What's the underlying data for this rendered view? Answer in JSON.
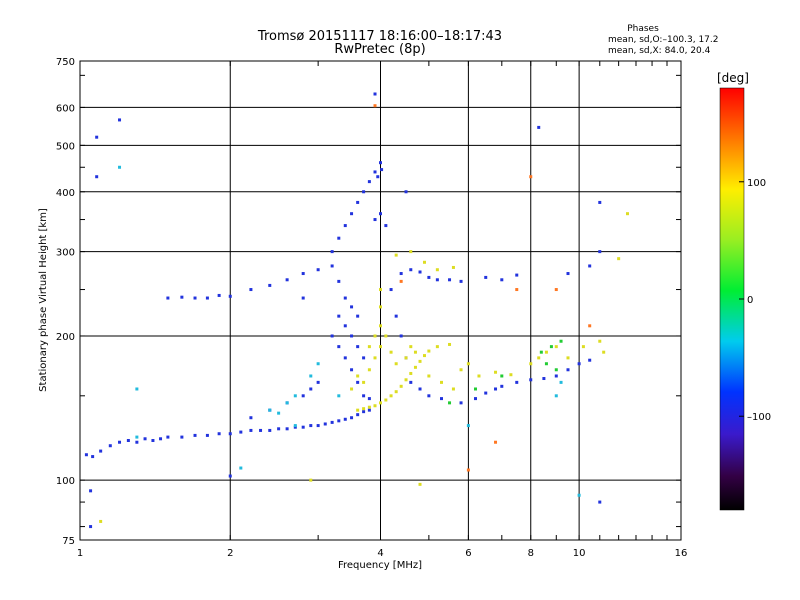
{
  "chart_data": {
    "type": "scatter",
    "title": "Tromsø 20151117 18:16:00–18:17:43",
    "subtitle": "RwPretec (8p)",
    "xlabel": "Frequency [MHz]",
    "ylabel": "Stationary phase Virtual Height [km]",
    "x_scale": "log",
    "y_scale": "log",
    "xlim": [
      1,
      16
    ],
    "ylim": [
      75,
      750
    ],
    "x_ticks": [
      1,
      2,
      4,
      6,
      8,
      10,
      16
    ],
    "x_tick_labels": [
      "1",
      "2",
      "4",
      "6",
      "8",
      "10",
      "16"
    ],
    "y_ticks": [
      75,
      100,
      200,
      300,
      400,
      500,
      600,
      750
    ],
    "y_tick_labels": [
      "75",
      "100",
      "200",
      "300",
      "400",
      "500",
      "600",
      "750"
    ],
    "grid": true,
    "phase_stats": {
      "title": "Phases",
      "line_o": "mean, sd,O:–100.3, 17.2",
      "line_x": "mean, sd,X:  84.0, 20.4"
    },
    "colorbar": {
      "label": "[deg]",
      "range": [
        -180,
        180
      ],
      "ticks": [
        100,
        0,
        -100
      ],
      "tick_labels": [
        "100",
        "0",
        "–100"
      ],
      "colormap": "rainbow"
    },
    "series": [
      {
        "description": "O-mode echoes (phase around -100 deg)",
        "phase": -100,
        "color": "#2233dd",
        "points": [
          [
            1.03,
            113
          ],
          [
            1.06,
            112
          ],
          [
            1.1,
            115
          ],
          [
            1.15,
            118
          ],
          [
            1.2,
            120
          ],
          [
            1.25,
            121
          ],
          [
            1.3,
            120
          ],
          [
            1.35,
            122
          ],
          [
            1.4,
            121
          ],
          [
            1.45,
            122
          ],
          [
            1.5,
            123
          ],
          [
            1.6,
            123
          ],
          [
            1.7,
            124
          ],
          [
            1.8,
            124
          ],
          [
            1.9,
            125
          ],
          [
            2.0,
            125
          ],
          [
            2.1,
            126
          ],
          [
            2.2,
            127
          ],
          [
            2.3,
            127
          ],
          [
            2.4,
            127
          ],
          [
            2.5,
            128
          ],
          [
            2.6,
            128
          ],
          [
            2.7,
            129
          ],
          [
            2.8,
            129
          ],
          [
            2.9,
            130
          ],
          [
            3.0,
            130
          ],
          [
            3.1,
            131
          ],
          [
            3.2,
            132
          ],
          [
            3.3,
            133
          ],
          [
            3.4,
            134
          ],
          [
            3.5,
            135
          ],
          [
            3.6,
            137
          ],
          [
            3.7,
            139
          ],
          [
            3.8,
            140
          ],
          [
            1.5,
            240
          ],
          [
            1.6,
            241
          ],
          [
            1.7,
            240
          ],
          [
            1.8,
            240
          ],
          [
            1.9,
            243
          ],
          [
            2.0,
            242
          ],
          [
            2.2,
            250
          ],
          [
            2.4,
            255
          ],
          [
            2.6,
            262
          ],
          [
            2.8,
            270
          ],
          [
            3.0,
            275
          ],
          [
            3.2,
            280
          ],
          [
            3.3,
            260
          ],
          [
            3.4,
            240
          ],
          [
            3.5,
            230
          ],
          [
            3.6,
            220
          ],
          [
            3.2,
            200
          ],
          [
            3.3,
            190
          ],
          [
            3.4,
            180
          ],
          [
            3.5,
            170
          ],
          [
            3.6,
            160
          ],
          [
            3.7,
            150
          ],
          [
            3.8,
            148
          ],
          [
            3.3,
            220
          ],
          [
            3.4,
            210
          ],
          [
            3.5,
            200
          ],
          [
            3.6,
            190
          ],
          [
            3.7,
            180
          ],
          [
            3.2,
            300
          ],
          [
            3.3,
            320
          ],
          [
            3.4,
            340
          ],
          [
            3.5,
            360
          ],
          [
            3.6,
            380
          ],
          [
            3.7,
            400
          ],
          [
            3.8,
            420
          ],
          [
            3.9,
            440
          ],
          [
            4.0,
            460
          ],
          [
            3.9,
            350
          ],
          [
            4.0,
            360
          ],
          [
            4.1,
            340
          ],
          [
            3.95,
            430
          ],
          [
            4.02,
            445
          ],
          [
            3.0,
            160
          ],
          [
            2.9,
            155
          ],
          [
            2.8,
            150
          ],
          [
            2.6,
            145
          ],
          [
            2.4,
            140
          ],
          [
            2.2,
            135
          ],
          [
            4.2,
            250
          ],
          [
            4.4,
            270
          ],
          [
            4.6,
            275
          ],
          [
            4.8,
            272
          ],
          [
            5.0,
            265
          ],
          [
            5.2,
            262
          ],
          [
            5.5,
            262
          ],
          [
            5.8,
            260
          ],
          [
            4.3,
            220
          ],
          [
            4.4,
            200
          ],
          [
            4.5,
            180
          ],
          [
            4.6,
            160
          ],
          [
            4.8,
            155
          ],
          [
            5.0,
            150
          ],
          [
            5.3,
            148
          ],
          [
            5.8,
            145
          ],
          [
            6.2,
            148
          ],
          [
            6.5,
            152
          ],
          [
            6.8,
            155
          ],
          [
            7.0,
            157
          ],
          [
            7.5,
            160
          ],
          [
            8.0,
            162
          ],
          [
            8.5,
            163
          ],
          [
            9.0,
            165
          ],
          [
            9.5,
            170
          ],
          [
            10.0,
            175
          ],
          [
            10.5,
            178
          ],
          [
            6.5,
            265
          ],
          [
            7.0,
            262
          ],
          [
            7.5,
            268
          ],
          [
            9.5,
            270
          ],
          [
            10.5,
            280
          ],
          [
            11.0,
            300
          ],
          [
            11.0,
            380
          ],
          [
            11.0,
            90
          ],
          [
            1.05,
            95
          ],
          [
            1.08,
            430
          ],
          [
            1.05,
            80
          ],
          [
            1.2,
            565
          ],
          [
            1.08,
            520
          ],
          [
            2.0,
            102
          ],
          [
            2.8,
            240
          ],
          [
            4.5,
            400
          ],
          [
            8.3,
            545
          ],
          [
            3.9,
            640
          ]
        ]
      },
      {
        "description": "X-mode echoes (phase around +100 deg)",
        "phase": 100,
        "color": "#dddd22",
        "points": [
          [
            3.6,
            140
          ],
          [
            3.7,
            141
          ],
          [
            3.8,
            142
          ],
          [
            3.9,
            143
          ],
          [
            4.0,
            145
          ],
          [
            4.1,
            147
          ],
          [
            4.2,
            150
          ],
          [
            4.3,
            153
          ],
          [
            4.4,
            157
          ],
          [
            4.5,
            162
          ],
          [
            4.6,
            167
          ],
          [
            4.7,
            172
          ],
          [
            4.8,
            177
          ],
          [
            4.9,
            182
          ],
          [
            5.0,
            186
          ],
          [
            5.2,
            190
          ],
          [
            5.5,
            192
          ],
          [
            3.7,
            160
          ],
          [
            3.8,
            170
          ],
          [
            3.9,
            180
          ],
          [
            4.0,
            190
          ],
          [
            4.0,
            210
          ],
          [
            4.0,
            230
          ],
          [
            4.0,
            250
          ],
          [
            4.1,
            200
          ],
          [
            4.2,
            185
          ],
          [
            4.3,
            175
          ],
          [
            3.5,
            155
          ],
          [
            3.6,
            165
          ],
          [
            3.8,
            190
          ],
          [
            3.9,
            200
          ],
          [
            4.5,
            180
          ],
          [
            4.6,
            190
          ],
          [
            4.7,
            185
          ],
          [
            5.0,
            165
          ],
          [
            5.3,
            160
          ],
          [
            5.6,
            155
          ],
          [
            5.8,
            170
          ],
          [
            6.0,
            175
          ],
          [
            6.3,
            165
          ],
          [
            6.8,
            168
          ],
          [
            7.3,
            166
          ],
          [
            4.3,
            295
          ],
          [
            4.6,
            300
          ],
          [
            4.9,
            285
          ],
          [
            5.2,
            275
          ],
          [
            5.6,
            278
          ],
          [
            8.0,
            175
          ],
          [
            8.3,
            180
          ],
          [
            8.6,
            185
          ],
          [
            9.0,
            190
          ],
          [
            9.5,
            180
          ],
          [
            10.2,
            190
          ],
          [
            11.0,
            195
          ],
          [
            11.2,
            185
          ],
          [
            12.0,
            290
          ],
          [
            12.5,
            360
          ],
          [
            1.1,
            82
          ],
          [
            2.9,
            100
          ],
          [
            4.8,
            98
          ]
        ]
      },
      {
        "description": "Cyan / intermediate-phase echoes",
        "phase": -40,
        "color": "#22bbdd",
        "points": [
          [
            2.4,
            140
          ],
          [
            2.5,
            138
          ],
          [
            2.6,
            145
          ],
          [
            2.7,
            150
          ],
          [
            2.9,
            165
          ],
          [
            3.0,
            175
          ],
          [
            1.3,
            155
          ],
          [
            2.1,
            106
          ],
          [
            3.3,
            150
          ],
          [
            6.0,
            130
          ],
          [
            9.0,
            150
          ],
          [
            1.3,
            123
          ],
          [
            2.7,
            130
          ],
          [
            9.2,
            160
          ],
          [
            1.2,
            450
          ],
          [
            10.0,
            93
          ]
        ]
      },
      {
        "description": "Green-phase echoes",
        "phase": 20,
        "color": "#22cc33",
        "points": [
          [
            8.4,
            185
          ],
          [
            8.8,
            190
          ],
          [
            9.2,
            195
          ],
          [
            8.6,
            175
          ],
          [
            9.0,
            170
          ],
          [
            7.0,
            165
          ],
          [
            5.5,
            145
          ],
          [
            6.2,
            155
          ]
        ]
      },
      {
        "description": "Orange / red-phase echoes",
        "phase": 150,
        "color": "#ff7722",
        "points": [
          [
            3.9,
            605
          ],
          [
            8.0,
            430
          ],
          [
            6.0,
            105
          ],
          [
            6.8,
            120
          ],
          [
            4.4,
            260
          ],
          [
            10.5,
            210
          ],
          [
            9.0,
            250
          ],
          [
            7.5,
            250
          ]
        ]
      }
    ]
  }
}
